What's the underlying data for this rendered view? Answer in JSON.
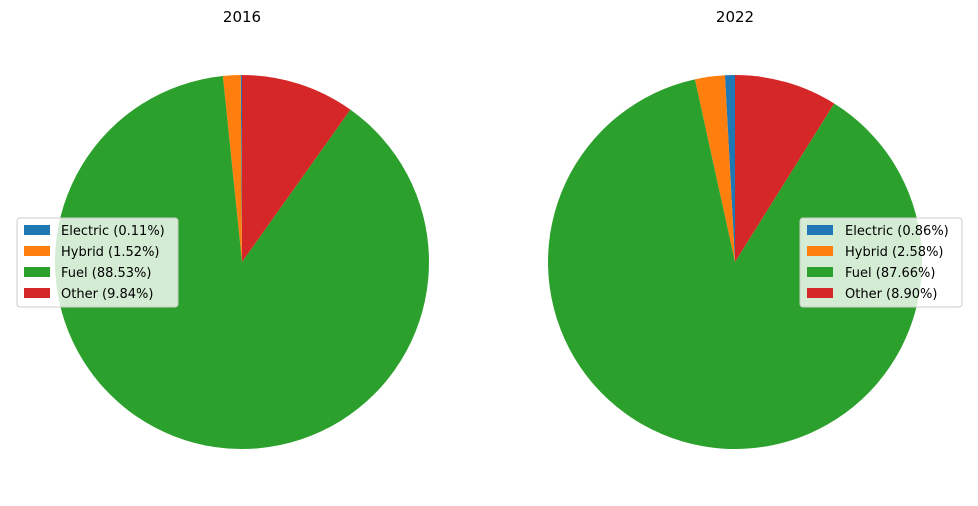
{
  "chart_data": [
    {
      "type": "pie",
      "title": "2016",
      "categories": [
        "Electric",
        "Hybrid",
        "Fuel",
        "Other"
      ],
      "values": [
        0.11,
        1.52,
        88.53,
        9.84
      ],
      "unit": "%",
      "colors": [
        "#1f77b4",
        "#ff7f0e",
        "#2ca02c",
        "#d62728"
      ],
      "start_angle": "top",
      "direction": "counterclockwise",
      "legend": {
        "placement": "center-left",
        "entries": [
          "Electric (0.11%)",
          "Hybrid (1.52%)",
          "Fuel (88.53%)",
          "Other (9.84%)"
        ]
      }
    },
    {
      "type": "pie",
      "title": "2022",
      "categories": [
        "Electric",
        "Hybrid",
        "Fuel",
        "Other"
      ],
      "values": [
        0.86,
        2.58,
        87.66,
        8.9
      ],
      "unit": "%",
      "colors": [
        "#1f77b4",
        "#ff7f0e",
        "#2ca02c",
        "#d62728"
      ],
      "start_angle": "top",
      "direction": "counterclockwise",
      "legend": {
        "placement": "center-right",
        "entries": [
          "Electric (0.86%)",
          "Hybrid (2.58%)",
          "Fuel (87.66%)",
          "Other (8.90%)"
        ]
      }
    }
  ]
}
